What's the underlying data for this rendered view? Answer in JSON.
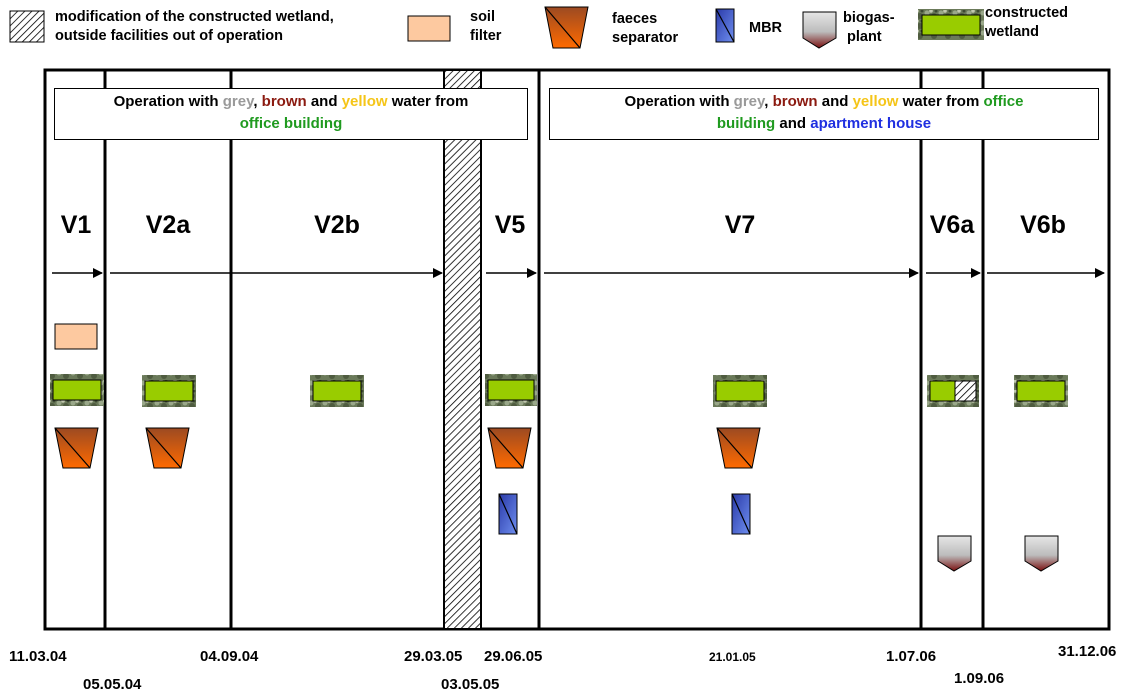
{
  "legend": {
    "modification": [
      "modification of the constructed wetland,",
      "outside facilities out of operation"
    ],
    "soil_filter": [
      "soil",
      "filter"
    ],
    "faeces_separator": [
      "faeces",
      "separator"
    ],
    "mbr": "MBR",
    "biogas_plant": [
      "biogas-",
      "plant"
    ],
    "constructed_wetland": [
      "constructed",
      "wetland"
    ]
  },
  "info_boxes": [
    {
      "line1": {
        "prefix": "Operation with ",
        "grey": "grey",
        "sep1": ", ",
        "brown": "brown",
        "sep2": " and ",
        "yellow": "yellow",
        "suffix": " water from"
      },
      "line2": {
        "green": "office building",
        "sep": "",
        "blue": ""
      }
    },
    {
      "line1": {
        "prefix": "Operation with ",
        "grey": "grey",
        "sep1": ", ",
        "brown": "brown",
        "sep2": " and ",
        "yellow": "yellow",
        "suffix": " water from "
      },
      "line1_green": "office",
      "line2": {
        "green": "building",
        "sep": " and ",
        "blue": "apartment house"
      }
    }
  ],
  "phases": [
    "V1",
    "V2a",
    "V2b",
    "V5",
    "V7",
    "V6a",
    "V6b"
  ],
  "dates": {
    "top": [
      "11.03.04",
      "04.09.04",
      "29.03.05",
      "29.06.05",
      "21.01.05",
      "1.07.06",
      "31.12.06"
    ],
    "bottom": [
      "05.05.04",
      "03.05.05",
      "1.09.06"
    ]
  },
  "colors": {
    "soil_filter": "#fdc9a0",
    "wetland_green": "#99cc00",
    "faeces_top": "#a0522d",
    "faeces_bottom": "#ff6a00",
    "mbr_fill": "#4a6fd8",
    "biogas_top": "#d9d9d9",
    "biogas_bottom": "#8b1a1a"
  }
}
